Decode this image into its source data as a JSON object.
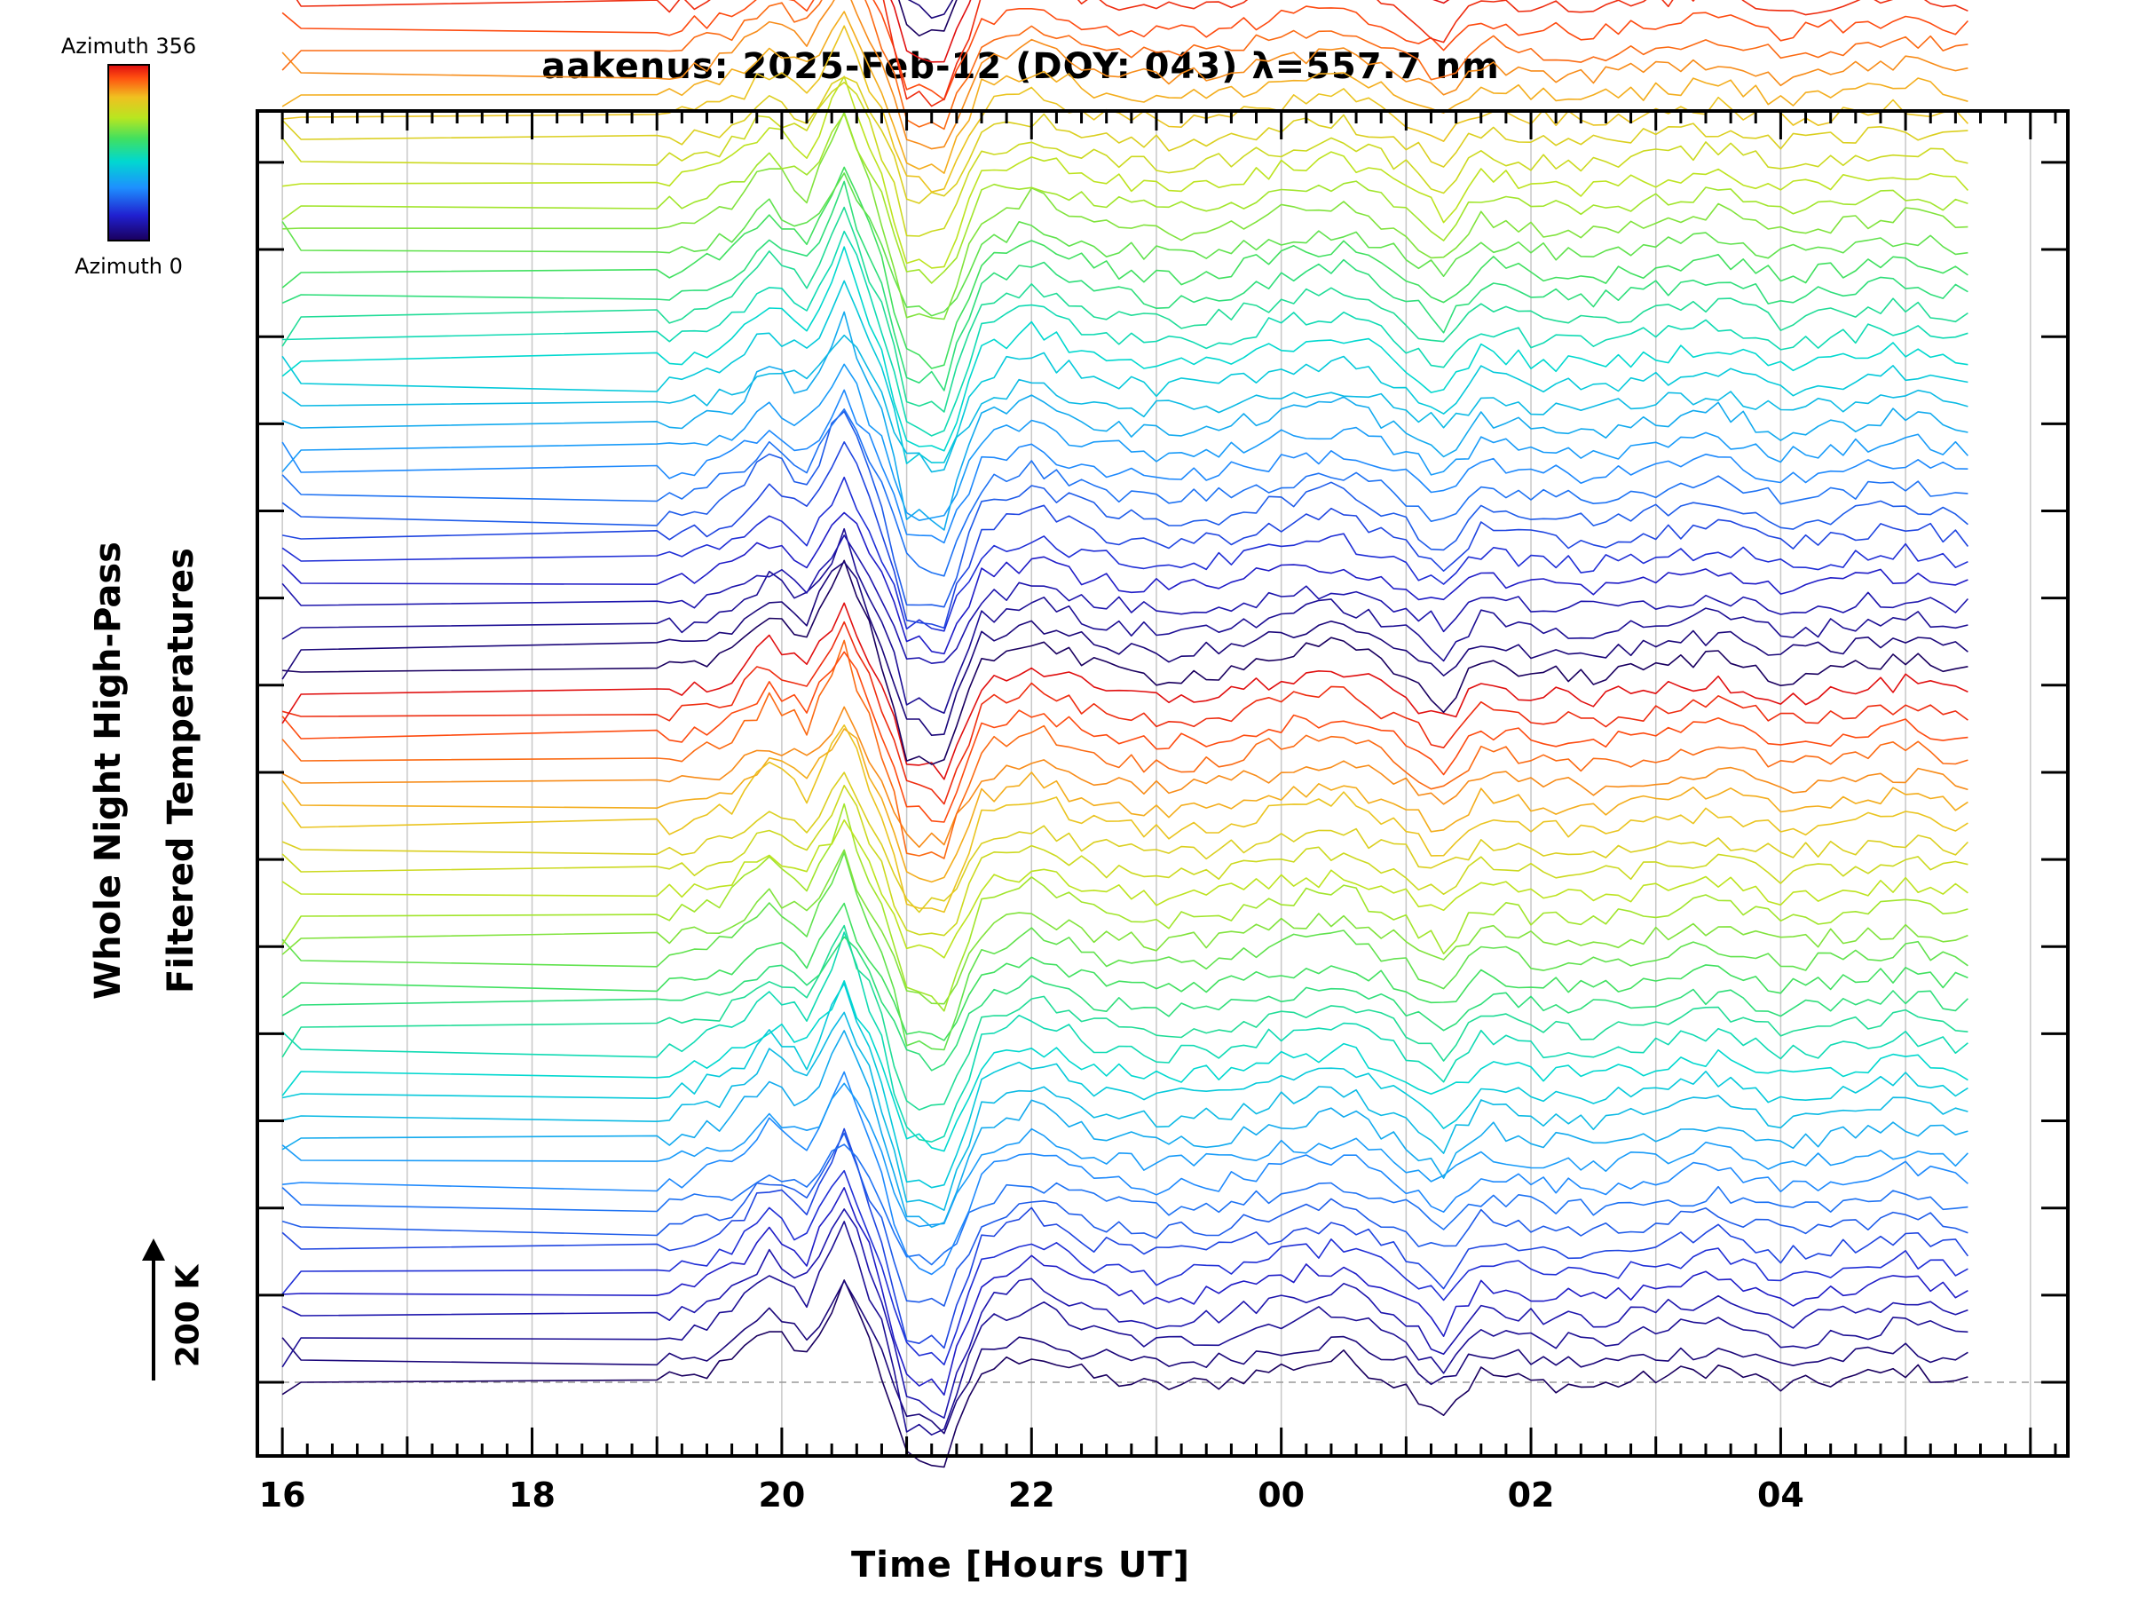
{
  "chart_data": {
    "type": "line",
    "title": "aakenus: 2025-Feb-12 (DOY: 043) λ=557.7 nm",
    "xlabel": "Time [Hours UT]",
    "ylabel_line1": "Whole Night High-Pass",
    "ylabel_line2": "Filtered Temperatures",
    "scale_bar_label": "200 K",
    "scale_bar_value_K": 200,
    "x_units": "hours since 16:00 UT",
    "xlim": [
      -0.2,
      14.3
    ],
    "x_tick_values": [
      0,
      2,
      4,
      6,
      8,
      10,
      12
    ],
    "x_tick_labels": [
      "16",
      "18",
      "20",
      "22",
      "00",
      "02",
      "04"
    ],
    "colorbar": {
      "label_top": "Azimuth 356",
      "label_bottom": "Azimuth 0",
      "range": [
        0,
        356
      ]
    },
    "grid": "vertical lines at every hour",
    "series_count": 160,
    "series_offset_K": 50,
    "azimuth_cycle_length": 32,
    "x_start": 0.0,
    "x_gap_end": 3.0,
    "x_dense_start": 3.0,
    "x_end": 13.5,
    "sample_step_h": 0.1,
    "common_signal": {
      "x": [
        3.0,
        3.3,
        3.6,
        3.9,
        4.2,
        4.5,
        4.8,
        5.0,
        5.3,
        5.6,
        6.0,
        6.5,
        7.0,
        7.5,
        8.0,
        8.5,
        9.0,
        9.3,
        9.6,
        10.0,
        10.5,
        11.0,
        11.5,
        12.0,
        12.5,
        13.0,
        13.5
      ],
      "y": [
        0,
        10,
        40,
        110,
        60,
        200,
        20,
        -150,
        -170,
        20,
        60,
        10,
        -10,
        0,
        30,
        50,
        -10,
        -60,
        20,
        0,
        -10,
        10,
        30,
        -10,
        5,
        25,
        0
      ]
    }
  },
  "colors": {
    "axis": "#000000",
    "grid": "#c8c8c8",
    "baseline": "#999999"
  }
}
